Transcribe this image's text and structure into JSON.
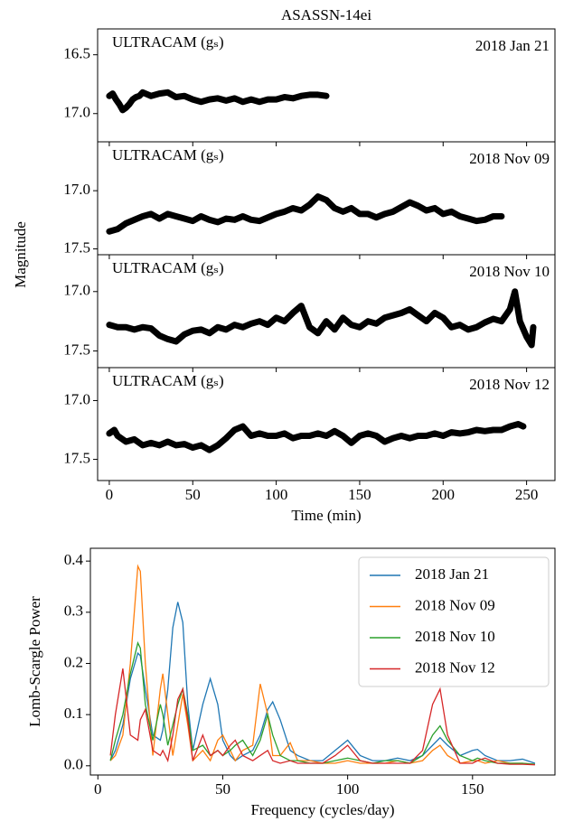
{
  "chart_data": [
    {
      "type": "line",
      "title": "ASASSN-14ei",
      "ylabel": "Magnitude",
      "label": "ULTRACAM (gₛ)",
      "date": "2018 Jan 21",
      "color": "#000000",
      "x": [
        0,
        2,
        4,
        6,
        8,
        10,
        12,
        14,
        16,
        18,
        20,
        25,
        30,
        35,
        40,
        45,
        50,
        55,
        60,
        65,
        70,
        75,
        80,
        85,
        90,
        95,
        100,
        105,
        110,
        115,
        120,
        125,
        130
      ],
      "values": [
        16.85,
        16.83,
        16.88,
        16.92,
        16.97,
        16.95,
        16.92,
        16.88,
        16.86,
        16.85,
        16.82,
        16.85,
        16.83,
        16.82,
        16.86,
        16.85,
        16.88,
        16.9,
        16.88,
        16.87,
        16.89,
        16.87,
        16.9,
        16.88,
        16.9,
        16.88,
        16.88,
        16.86,
        16.87,
        16.85,
        16.84,
        16.84,
        16.85
      ],
      "xlim": [
        -7,
        267
      ],
      "xticks": [
        0,
        50,
        100,
        150,
        200,
        250
      ],
      "ylim": [
        17.24,
        16.28
      ],
      "yticks": [
        16.5,
        {
          "value": 17,
          "label": "17.0"
        }
      ]
    },
    {
      "type": "line",
      "label": "ULTRACAM (gₛ)",
      "date": "2018 Nov 09",
      "color": "#000000",
      "x": [
        0,
        5,
        10,
        15,
        20,
        25,
        30,
        35,
        40,
        45,
        50,
        55,
        60,
        65,
        70,
        75,
        80,
        85,
        90,
        95,
        100,
        105,
        110,
        115,
        120,
        125,
        130,
        135,
        140,
        145,
        150,
        155,
        160,
        165,
        170,
        175,
        180,
        185,
        190,
        195,
        200,
        205,
        210,
        215,
        220,
        225,
        230,
        235
      ],
      "values": [
        17.35,
        17.33,
        17.28,
        17.25,
        17.22,
        17.2,
        17.24,
        17.2,
        17.22,
        17.24,
        17.26,
        17.22,
        17.25,
        17.27,
        17.24,
        17.25,
        17.22,
        17.25,
        17.26,
        17.23,
        17.2,
        17.18,
        17.15,
        17.17,
        17.12,
        17.05,
        17.08,
        17.15,
        17.18,
        17.15,
        17.2,
        17.2,
        17.23,
        17.2,
        17.18,
        17.14,
        17.1,
        17.13,
        17.17,
        17.15,
        17.2,
        17.18,
        17.22,
        17.24,
        17.26,
        17.25,
        17.22,
        17.22
      ],
      "xlim": [
        -7,
        267
      ],
      "xticks": [
        0,
        50,
        100,
        150,
        200,
        250
      ],
      "ylim": [
        17.55,
        16.58
      ],
      "yticks": [
        {
          "value": 17,
          "label": "17.0"
        },
        17.5
      ]
    },
    {
      "type": "line",
      "label": "ULTRACAM (gₛ)",
      "date": "2018 Nov 10",
      "color": "#000000",
      "x": [
        0,
        5,
        10,
        15,
        20,
        25,
        30,
        35,
        40,
        45,
        50,
        55,
        60,
        65,
        70,
        75,
        80,
        85,
        90,
        95,
        100,
        105,
        110,
        115,
        120,
        125,
        130,
        135,
        140,
        145,
        150,
        155,
        160,
        165,
        170,
        175,
        180,
        185,
        190,
        195,
        200,
        205,
        210,
        215,
        220,
        225,
        230,
        235,
        240,
        243,
        246,
        250,
        253,
        254
      ],
      "values": [
        17.28,
        17.3,
        17.3,
        17.32,
        17.3,
        17.31,
        17.37,
        17.4,
        17.42,
        17.36,
        17.33,
        17.32,
        17.35,
        17.3,
        17.32,
        17.28,
        17.3,
        17.27,
        17.25,
        17.28,
        17.22,
        17.25,
        17.18,
        17.12,
        17.3,
        17.35,
        17.25,
        17.32,
        17.22,
        17.28,
        17.3,
        17.25,
        17.27,
        17.22,
        17.2,
        17.18,
        17.15,
        17.2,
        17.25,
        17.18,
        17.22,
        17.3,
        17.28,
        17.32,
        17.3,
        17.26,
        17.23,
        17.25,
        17.15,
        17.0,
        17.25,
        17.38,
        17.45,
        17.3
      ],
      "xlim": [
        -7,
        267
      ],
      "xticks": [
        0,
        50,
        100,
        150,
        200,
        250
      ],
      "ylim": [
        17.64,
        16.69
      ],
      "yticks": [
        {
          "value": 17,
          "label": "17.0"
        },
        17.5
      ]
    },
    {
      "type": "line",
      "label": "ULTRACAM (gₛ)",
      "date": "2018 Nov 12",
      "color": "#000000",
      "xlabel": "Time (min)",
      "x": [
        0,
        3,
        5,
        10,
        15,
        20,
        25,
        30,
        35,
        40,
        45,
        50,
        55,
        60,
        65,
        70,
        75,
        80,
        85,
        90,
        95,
        100,
        105,
        110,
        115,
        120,
        125,
        130,
        135,
        140,
        145,
        150,
        155,
        160,
        165,
        170,
        175,
        180,
        185,
        190,
        195,
        200,
        205,
        210,
        215,
        220,
        225,
        230,
        235,
        240,
        245,
        248
      ],
      "values": [
        17.28,
        17.25,
        17.3,
        17.35,
        17.33,
        17.38,
        17.36,
        17.38,
        17.35,
        17.38,
        17.37,
        17.4,
        17.38,
        17.42,
        17.38,
        17.32,
        17.25,
        17.22,
        17.3,
        17.28,
        17.3,
        17.3,
        17.28,
        17.32,
        17.3,
        17.3,
        17.28,
        17.3,
        17.26,
        17.3,
        17.36,
        17.3,
        17.28,
        17.3,
        17.35,
        17.32,
        17.3,
        17.32,
        17.3,
        17.3,
        17.28,
        17.3,
        17.27,
        17.28,
        17.27,
        17.25,
        17.26,
        17.25,
        17.25,
        17.22,
        17.2,
        17.22
      ],
      "xlim": [
        -7,
        267
      ],
      "xticks": [
        0,
        50,
        100,
        150,
        200,
        250
      ],
      "ylim": [
        17.68,
        16.72
      ],
      "yticks": [
        {
          "value": 17,
          "label": "17.0"
        },
        17.5
      ]
    },
    {
      "type": "line",
      "xlabel": "Frequency (cycles/day)",
      "ylabel": "Lomb-Scargle Power",
      "legend": "upper right",
      "x": [
        5,
        7,
        10,
        13,
        16,
        17,
        19,
        22,
        25,
        26,
        28,
        30,
        32,
        34,
        36,
        38,
        42,
        45,
        48,
        50,
        53,
        55,
        58,
        62,
        65,
        68,
        70,
        73,
        77,
        80,
        85,
        90,
        95,
        100,
        105,
        110,
        115,
        120,
        125,
        130,
        134,
        137,
        140,
        145,
        150,
        152,
        155,
        160,
        165,
        170,
        175
      ],
      "series": [
        {
          "name": "2018 Jan 21",
          "color": "#1f77b4",
          "values": [
            0.01,
            0.03,
            0.08,
            0.17,
            0.22,
            0.215,
            0.15,
            0.06,
            0.05,
            0.07,
            0.15,
            0.27,
            0.32,
            0.28,
            0.12,
            0.03,
            0.12,
            0.17,
            0.12,
            0.05,
            0.02,
            0.01,
            0.02,
            0.03,
            0.06,
            0.11,
            0.125,
            0.09,
            0.03,
            0.02,
            0.01,
            0.01,
            0.03,
            0.05,
            0.02,
            0.01,
            0.01,
            0.015,
            0.01,
            0.02,
            0.04,
            0.055,
            0.04,
            0.02,
            0.03,
            0.032,
            0.02,
            0.01,
            0.01,
            0.013,
            0.005
          ]
        },
        {
          "name": "2018 Nov 09",
          "color": "#ff7f0e",
          "values": [
            0.01,
            0.02,
            0.06,
            0.2,
            0.39,
            0.38,
            0.2,
            0.02,
            0.15,
            0.18,
            0.1,
            0.02,
            0.08,
            0.14,
            0.08,
            0.01,
            0.03,
            0.01,
            0.05,
            0.06,
            0.03,
            0.01,
            0.03,
            0.04,
            0.16,
            0.1,
            0.02,
            0.02,
            0.045,
            0.01,
            0.01,
            0.005,
            0.005,
            0.01,
            0.005,
            0.005,
            0.005,
            0.01,
            0.005,
            0.01,
            0.03,
            0.04,
            0.02,
            0.005,
            0.01,
            0.01,
            0.005,
            0.01,
            0.005,
            0.005,
            0.003
          ]
        },
        {
          "name": "2018 Nov 10",
          "color": "#2ca02c",
          "values": [
            0.01,
            0.05,
            0.1,
            0.18,
            0.24,
            0.23,
            0.12,
            0.05,
            0.12,
            0.1,
            0.04,
            0.08,
            0.12,
            0.15,
            0.1,
            0.03,
            0.04,
            0.02,
            0.03,
            0.02,
            0.03,
            0.04,
            0.05,
            0.02,
            0.05,
            0.1,
            0.06,
            0.02,
            0.01,
            0.01,
            0.005,
            0.005,
            0.01,
            0.015,
            0.01,
            0.005,
            0.01,
            0.01,
            0.005,
            0.02,
            0.06,
            0.078,
            0.05,
            0.02,
            0.01,
            0.015,
            0.01,
            0.005,
            0.005,
            0.005,
            0.003
          ]
        },
        {
          "name": "2018 Nov 12",
          "color": "#d62728",
          "values": [
            0.02,
            0.1,
            0.19,
            0.06,
            0.05,
            0.09,
            0.11,
            0.03,
            0.02,
            0.03,
            0.01,
            0.06,
            0.13,
            0.15,
            0.09,
            0.01,
            0.06,
            0.02,
            0.03,
            0.02,
            0.04,
            0.05,
            0.02,
            0.01,
            0.02,
            0.03,
            0.01,
            0.005,
            0.01,
            0.005,
            0.005,
            0.005,
            0.02,
            0.04,
            0.01,
            0.005,
            0.005,
            0.005,
            0.005,
            0.03,
            0.12,
            0.15,
            0.06,
            0.005,
            0.005,
            0.01,
            0.015,
            0.005,
            0.003,
            0.003,
            0.002
          ]
        }
      ],
      "xlim": [
        -3,
        183
      ],
      "xticks": [
        0,
        50,
        100,
        150
      ],
      "ylim": [
        -0.018,
        0.425
      ],
      "yticks": [
        {
          "value": 0,
          "label": "0.0"
        },
        0.1,
        0.2,
        0.3,
        0.4
      ]
    }
  ]
}
